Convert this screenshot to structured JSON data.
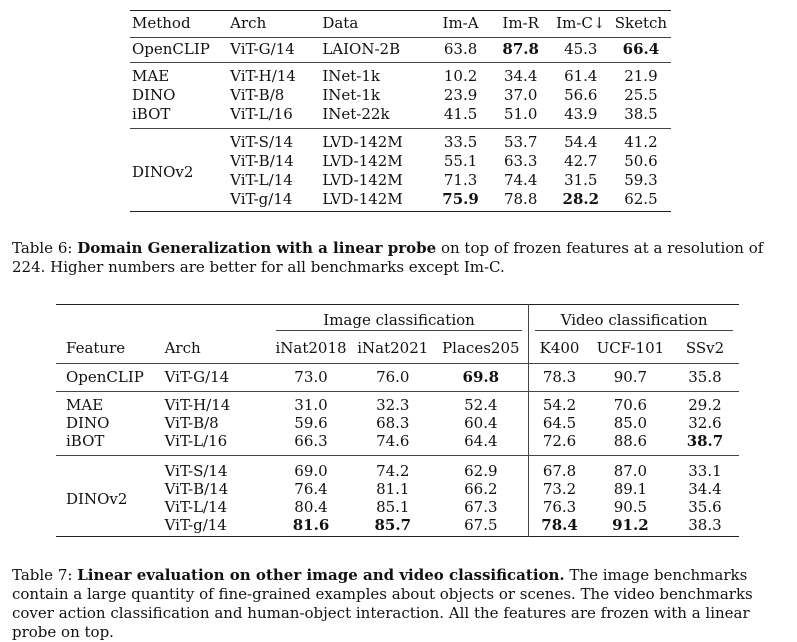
{
  "table6": {
    "headers": [
      "Method",
      "Arch",
      "Data",
      "Im-A",
      "Im-R",
      "Im-C↓",
      "Sketch"
    ],
    "openclip": {
      "method": "OpenCLIP",
      "arch": "ViT-G/14",
      "data": "LAION-2B",
      "ima": "63.8",
      "imr": "87.8",
      "imc": "45.3",
      "sketch": "66.4"
    },
    "ssl": [
      {
        "method": "MAE",
        "arch": "ViT-H/14",
        "data": "INet-1k",
        "ima": "10.2",
        "imr": "34.4",
        "imc": "61.4",
        "sketch": "21.9"
      },
      {
        "method": "DINO",
        "arch": "ViT-B/8",
        "data": "INet-1k",
        "ima": "23.9",
        "imr": "37.0",
        "imc": "56.6",
        "sketch": "25.5"
      },
      {
        "method": "iBOT",
        "arch": "ViT-L/16",
        "data": "INet-22k",
        "ima": "41.5",
        "imr": "51.0",
        "imc": "43.9",
        "sketch": "38.5"
      }
    ],
    "dinov2_label": "DINOv2",
    "dinov2": [
      {
        "arch": "ViT-S/14",
        "data": "LVD-142M",
        "ima": "33.5",
        "imr": "53.7",
        "imc": "54.4",
        "sketch": "41.2"
      },
      {
        "arch": "ViT-B/14",
        "data": "LVD-142M",
        "ima": "55.1",
        "imr": "63.3",
        "imc": "42.7",
        "sketch": "50.6"
      },
      {
        "arch": "ViT-L/14",
        "data": "LVD-142M",
        "ima": "71.3",
        "imr": "74.4",
        "imc": "31.5",
        "sketch": "59.3"
      },
      {
        "arch": "ViT-g/14",
        "data": "LVD-142M",
        "ima": "75.9",
        "imr": "78.8",
        "imc": "28.2",
        "sketch": "62.5"
      }
    ],
    "caption": {
      "label": "Table 6: ",
      "bold": "Domain Generalization with a linear probe",
      "rest": " on top of frozen features at a resolution of 224. Higher numbers are better for all benchmarks except Im-C."
    }
  },
  "table7": {
    "group_image": "Image classification",
    "group_video": "Video classification",
    "headers": [
      "Feature",
      "Arch",
      "iNat2018",
      "iNat2021",
      "Places205",
      "K400",
      "UCF-101",
      "SSv2"
    ],
    "openclip": {
      "feature": "OpenCLIP",
      "arch": "ViT-G/14",
      "inat18": "73.0",
      "inat21": "76.0",
      "places": "69.8",
      "k400": "78.3",
      "ucf": "90.7",
      "ssv2": "35.8"
    },
    "ssl": [
      {
        "feature": "MAE",
        "arch": "ViT-H/14",
        "inat18": "31.0",
        "inat21": "32.3",
        "places": "52.4",
        "k400": "54.2",
        "ucf": "70.6",
        "ssv2": "29.2"
      },
      {
        "feature": "DINO",
        "arch": "ViT-B/8",
        "inat18": "59.6",
        "inat21": "68.3",
        "places": "60.4",
        "k400": "64.5",
        "ucf": "85.0",
        "ssv2": "32.6"
      },
      {
        "feature": "iBOT",
        "arch": "ViT-L/16",
        "inat18": "66.3",
        "inat21": "74.6",
        "places": "64.4",
        "k400": "72.6",
        "ucf": "88.6",
        "ssv2": "38.7"
      }
    ],
    "dinov2_label": "DINOv2",
    "dinov2": [
      {
        "arch": "ViT-S/14",
        "inat18": "69.0",
        "inat21": "74.2",
        "places": "62.9",
        "k400": "67.8",
        "ucf": "87.0",
        "ssv2": "33.1"
      },
      {
        "arch": "ViT-B/14",
        "inat18": "76.4",
        "inat21": "81.1",
        "places": "66.2",
        "k400": "73.2",
        "ucf": "89.1",
        "ssv2": "34.4"
      },
      {
        "arch": "ViT-L/14",
        "inat18": "80.4",
        "inat21": "85.1",
        "places": "67.3",
        "k400": "76.3",
        "ucf": "90.5",
        "ssv2": "35.6"
      },
      {
        "arch": "ViT-g/14",
        "inat18": "81.6",
        "inat21": "85.7",
        "places": "67.5",
        "k400": "78.4",
        "ucf": "91.2",
        "ssv2": "38.3"
      }
    ],
    "caption": {
      "label": "Table 7: ",
      "bold": "Linear evaluation on other image and video classification.",
      "rest": " The image benchmarks contain a large quantity of fine-grained examples about objects or scenes. The video benchmarks cover action classification and human-object interaction. All the features are frozen with a linear probe on top."
    }
  }
}
